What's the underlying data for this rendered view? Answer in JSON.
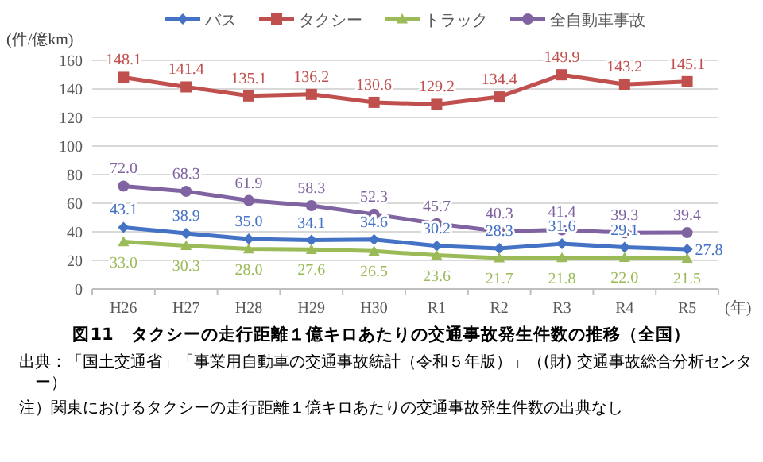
{
  "chart_data": {
    "type": "line",
    "title": "図11　タクシーの走行距離１億キロあたりの交通事故発生件数の推移（全国）",
    "ylabel": "(件/億km)",
    "xlabel": "(年)",
    "annotations": [
      "出典：「国土交通省」「事業用自動車の交通事故統計（令和５年版）」（(財) 交通事故総合分析センター）",
      "注）関東におけるタクシーの走行距離１億キロあたりの交通事故発生件数の出典なし"
    ],
    "categories": [
      "H26",
      "H27",
      "H28",
      "H29",
      "H30",
      "R1",
      "R2",
      "R3",
      "R4",
      "R5"
    ],
    "series": [
      {
        "name": "バス",
        "color": "#4472c4",
        "marker": "diamond",
        "values": [
          43.1,
          38.9,
          35.0,
          34.1,
          34.6,
          30.2,
          28.3,
          31.6,
          29.1,
          27.8
        ],
        "value_labels": [
          "43.1",
          "38.9",
          "35.0",
          "34.1",
          "34.6",
          "30.2",
          "28.3",
          "31.6",
          "29.1",
          "27.8"
        ]
      },
      {
        "name": "タクシー",
        "color": "#c0504d",
        "marker": "square",
        "values": [
          148.1,
          141.4,
          135.1,
          136.2,
          130.6,
          129.2,
          134.4,
          149.9,
          143.2,
          145.1
        ],
        "value_labels": [
          "148.1",
          "141.4",
          "135.1",
          "136.2",
          "130.6",
          "129.2",
          "134.4",
          "149.9",
          "143.2",
          "145.1"
        ]
      },
      {
        "name": "トラック",
        "color": "#9bbb59",
        "marker": "triangle",
        "values": [
          33.0,
          30.3,
          28.0,
          27.6,
          26.5,
          23.6,
          21.7,
          21.8,
          22.0,
          21.5
        ],
        "value_labels": [
          "33.0",
          "30.3",
          "28.0",
          "27.6",
          "26.5",
          "23.6",
          "21.7",
          "21.8",
          "22.0",
          "21.5"
        ]
      },
      {
        "name": "全自動車事故",
        "color": "#8064a2",
        "marker": "circle",
        "values": [
          72.0,
          68.3,
          61.9,
          58.3,
          52.3,
          45.7,
          40.3,
          41.4,
          39.3,
          39.4
        ],
        "value_labels": [
          "72.0",
          "68.3",
          "61.9",
          "58.3",
          "52.3",
          "45.7",
          "40.3",
          "41.4",
          "39.3",
          "39.4"
        ]
      }
    ],
    "ylim": [
      0,
      160
    ],
    "yticks": [
      0,
      20,
      40,
      60,
      80,
      100,
      120,
      140,
      160
    ],
    "grid": "y",
    "legend": "top"
  }
}
